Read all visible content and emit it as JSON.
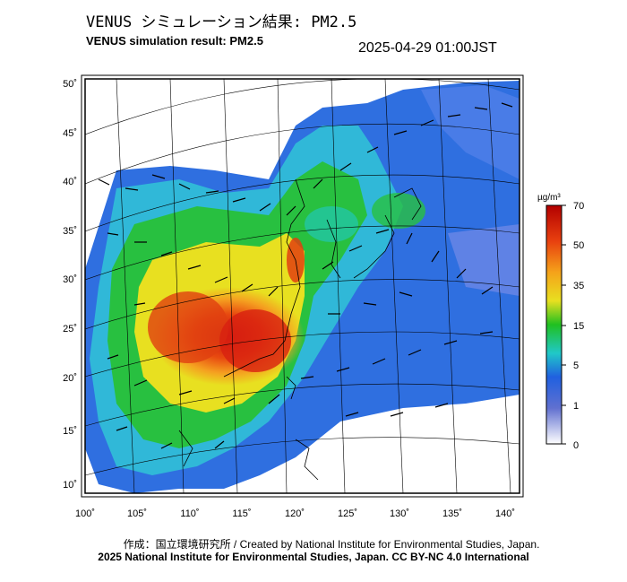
{
  "header": {
    "title_jp": "VENUS シミュレーション結果: PM2.5",
    "title_en": "VENUS simulation result: PM2.5",
    "timestamp": "2025-04-29 01:00JST"
  },
  "map": {
    "lon_labels": [
      "100˚",
      "105˚",
      "110˚",
      "115˚",
      "120˚",
      "125˚",
      "130˚",
      "135˚",
      "140˚"
    ],
    "lat_labels": [
      "50˚",
      "45˚",
      "40˚",
      "35˚",
      "30˚",
      "25˚",
      "20˚",
      "15˚",
      "10˚"
    ],
    "field": "PM2.5 concentration with wind vectors"
  },
  "colorbar": {
    "unit": "µg/m³",
    "ticks": [
      "70",
      "50",
      "35",
      "15",
      "5",
      "1",
      "0"
    ],
    "colors": [
      "#b30000",
      "#e8400f",
      "#f5a21a",
      "#f0e020",
      "#20c020",
      "#20c8c8",
      "#2060e0",
      "#4040c0",
      "#ffffff"
    ]
  },
  "footer": {
    "credit_line": "作成：国立環境研究所 / Created by National Institute for Environmental Studies, Japan.",
    "copyright_line": "2025 National Institute for Environmental Studies, Japan. CC BY-NC 4.0 International"
  }
}
